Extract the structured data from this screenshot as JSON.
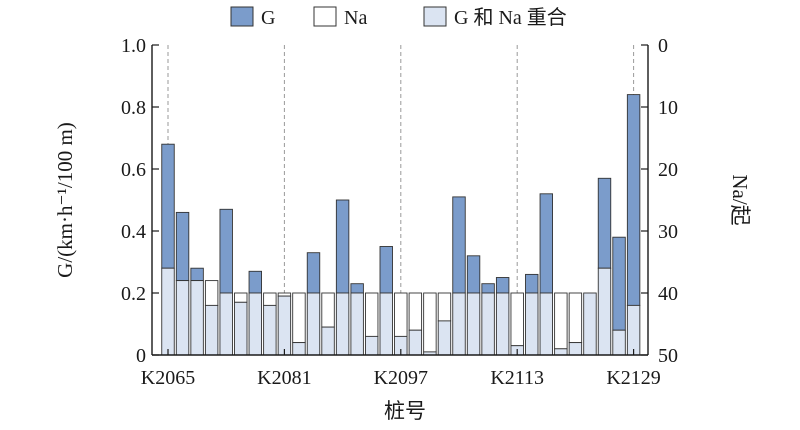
{
  "chart_data": {
    "type": "bar",
    "x_label": "桩号",
    "y_left_label": "G/(km·h⁻¹/100 m)",
    "y_right_label": "Na/起",
    "y_left_range": [
      0,
      1.0
    ],
    "y_left_ticks": [
      "0",
      "0.2",
      "0.4",
      "0.6",
      "0.8",
      "1.0"
    ],
    "y_right_range": [
      50,
      0
    ],
    "y_right_ticks": [
      "0",
      "10",
      "20",
      "30",
      "40",
      "50"
    ],
    "x_tick_labels": [
      "K2065",
      "K2081",
      "K2097",
      "K2113",
      "K2129"
    ],
    "x_tick_indices": [
      0,
      8,
      16,
      24,
      32
    ],
    "dashed_guides_at_indices": [
      0,
      8,
      16,
      24,
      32
    ],
    "legend_placement": "top",
    "legend": [
      {
        "key": "G",
        "label": "G",
        "color": "#7b9ccb"
      },
      {
        "key": "Na",
        "label": "Na",
        "color": "#ffffff"
      },
      {
        "key": "overlap",
        "label": "G 和 Na 重合",
        "color": "#dbe4f2"
      }
    ],
    "series": [
      {
        "name": "G",
        "unit": "km·h⁻¹/100 m",
        "values": [
          0.68,
          0.46,
          0.28,
          0.16,
          0.47,
          0.17,
          0.27,
          0.16,
          0.19,
          0.04,
          0.33,
          0.09,
          0.5,
          0.23,
          0.06,
          0.35,
          0.06,
          0.08,
          0.01,
          0.11,
          0.51,
          0.32,
          0.23,
          0.25,
          0.03,
          0.26,
          0.52,
          0.02,
          0.04,
          0.2,
          0.57,
          0.38,
          0.84
        ]
      },
      {
        "name": "Na",
        "unit": "起",
        "values": [
          36,
          38,
          38,
          38,
          40,
          40,
          40,
          40,
          40,
          40,
          40,
          40,
          40,
          40,
          40,
          40,
          40,
          40,
          40,
          40,
          40,
          40,
          40,
          40,
          40,
          40,
          40,
          40,
          40,
          40,
          36,
          46,
          42
        ]
      }
    ]
  }
}
